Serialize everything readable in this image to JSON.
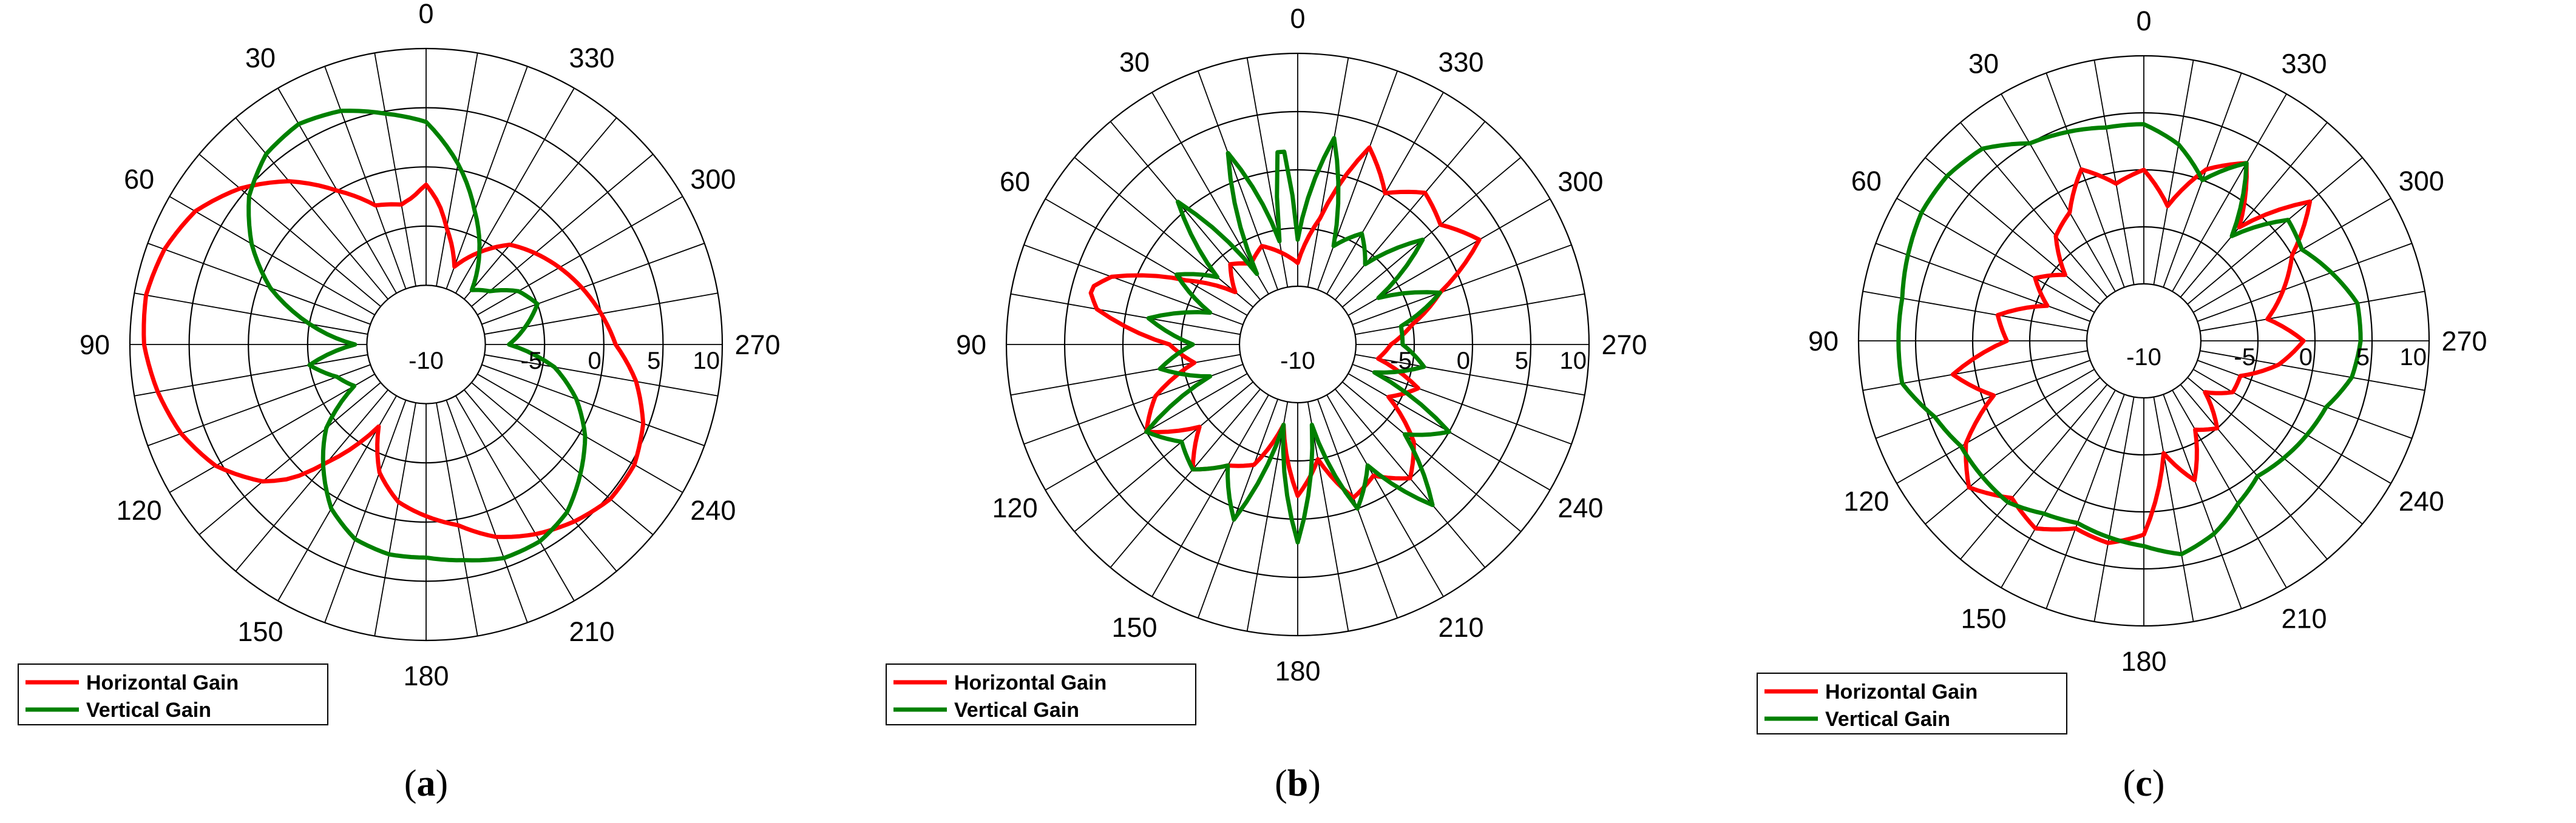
{
  "chart_data": [
    {
      "type": "polar",
      "caption_letter": "a",
      "angular_ticks": [
        "0",
        "30",
        "60",
        "90",
        "120",
        "150",
        "180",
        "210",
        "240",
        "270",
        "300",
        "330"
      ],
      "radial_ticks": [
        "-10",
        "-5",
        "0",
        "5",
        "10"
      ],
      "rlim": [
        -10,
        10
      ],
      "angle_step_deg": 10,
      "angle_direction": "counterclockwise, 0 at top",
      "legend": {
        "placement": "bottom-left"
      },
      "series": [
        {
          "name": "Horizontal Gain",
          "color": "#ff0000",
          "points": [
            [
              0,
              -1.5
            ],
            [
              5,
              -2.5
            ],
            [
              10,
              -3
            ],
            [
              20,
              -2.5
            ],
            [
              30,
              0
            ],
            [
              40,
              3
            ],
            [
              50,
              5.5
            ],
            [
              60,
              7.5
            ],
            [
              70,
              8.5
            ],
            [
              80,
              9
            ],
            [
              90,
              8.8
            ],
            [
              100,
              8
            ],
            [
              110,
              7
            ],
            [
              120,
              5.5
            ],
            [
              130,
              3
            ],
            [
              135,
              1
            ],
            [
              140,
              -2
            ],
            [
              150,
              -7
            ],
            [
              160,
              -3.5
            ],
            [
              170,
              -1.5
            ],
            [
              180,
              -0.5
            ],
            [
              190,
              0.5
            ],
            [
              200,
              2.3
            ],
            [
              210,
              3.5
            ],
            [
              220,
              4.5
            ],
            [
              230,
              5.3
            ],
            [
              240,
              5.3
            ],
            [
              250,
              4.5
            ],
            [
              260,
              3
            ],
            [
              270,
              1
            ],
            [
              280,
              0
            ],
            [
              290,
              -1
            ],
            [
              300,
              -2
            ],
            [
              310,
              -3
            ],
            [
              320,
              -4
            ],
            [
              330,
              -6
            ],
            [
              340,
              -8
            ],
            [
              350,
              -5
            ],
            [
              355,
              -3
            ]
          ]
        },
        {
          "name": "Vertical Gain",
          "color": "#008000",
          "points": [
            [
              0,
              3.8
            ],
            [
              10,
              4.8
            ],
            [
              20,
              6
            ],
            [
              30,
              6.5
            ],
            [
              40,
              6
            ],
            [
              50,
              4.5
            ],
            [
              60,
              2
            ],
            [
              70,
              -1
            ],
            [
              80,
              -5
            ],
            [
              90,
              -9
            ],
            [
              100,
              -5
            ],
            [
              110,
              -7
            ],
            [
              120,
              -8
            ],
            [
              130,
              -4
            ],
            [
              140,
              -1.5
            ],
            [
              150,
              1
            ],
            [
              160,
              2.5
            ],
            [
              170,
              3
            ],
            [
              180,
              3
            ],
            [
              190,
              3.5
            ],
            [
              200,
              4.2
            ],
            [
              210,
              4.2
            ],
            [
              220,
              3.5
            ],
            [
              230,
              2
            ],
            [
              240,
              0.5
            ],
            [
              250,
              -1.5
            ],
            [
              260,
              -4
            ],
            [
              270,
              -8
            ],
            [
              280,
              -6.5
            ],
            [
              290,
              -5
            ],
            [
              300,
              -6
            ],
            [
              310,
              -8
            ],
            [
              320,
              -9
            ],
            [
              330,
              -6
            ],
            [
              340,
              -3
            ],
            [
              350,
              0.5
            ]
          ]
        }
      ]
    },
    {
      "type": "polar",
      "caption_letter": "b",
      "angular_ticks": [
        "0",
        "30",
        "60",
        "90",
        "120",
        "150",
        "180",
        "210",
        "240",
        "270",
        "300",
        "330"
      ],
      "radial_ticks": [
        "-10",
        "-5",
        "0",
        "5",
        "10"
      ],
      "rlim": [
        -10,
        10
      ],
      "angle_step_deg": 10,
      "angle_direction": "counterclockwise, 0 at top",
      "legend": {
        "placement": "bottom-left"
      },
      "series": [
        {
          "name": "Horizontal Gain",
          "color": "#ff0000",
          "points": [
            [
              0,
              -8
            ],
            [
              10,
              -7
            ],
            [
              20,
              -6
            ],
            [
              30,
              -7
            ],
            [
              40,
              -6
            ],
            [
              50,
              -8
            ],
            [
              60,
              -4
            ],
            [
              70,
              2
            ],
            [
              75,
              3.5
            ],
            [
              80,
              2.5
            ],
            [
              90,
              -4
            ],
            [
              100,
              -6
            ],
            [
              110,
              -2
            ],
            [
              120,
              0
            ],
            [
              130,
              -4
            ],
            [
              140,
              -1
            ],
            [
              150,
              -3
            ],
            [
              160,
              -4
            ],
            [
              170,
              -8
            ],
            [
              180,
              -2
            ],
            [
              190,
              -5
            ],
            [
              200,
              -1
            ],
            [
              210,
              -2
            ],
            [
              220,
              0
            ],
            [
              230,
              -2
            ],
            [
              240,
              -6
            ],
            [
              250,
              -4
            ],
            [
              260,
              -8
            ],
            [
              270,
              -7
            ],
            [
              280,
              -5
            ],
            [
              290,
              -2
            ],
            [
              300,
              3
            ],
            [
              310,
              1
            ],
            [
              320,
              2
            ],
            [
              330,
              0
            ],
            [
              340,
              3
            ],
            [
              350,
              -4
            ]
          ]
        },
        {
          "name": "Vertical Gain",
          "color": "#008000",
          "points": [
            [
              0,
              -6
            ],
            [
              5,
              3.5
            ],
            [
              10,
              -6
            ],
            [
              20,
              2.5
            ],
            [
              30,
              -8
            ],
            [
              40,
              1
            ],
            [
              50,
              -6
            ],
            [
              60,
              -3
            ],
            [
              70,
              -7
            ],
            [
              80,
              -2
            ],
            [
              90,
              -6
            ],
            [
              100,
              -3
            ],
            [
              110,
              -7
            ],
            [
              120,
              0
            ],
            [
              130,
              -2
            ],
            [
              140,
              -1
            ],
            [
              150,
              -3
            ],
            [
              160,
              1
            ],
            [
              170,
              -8
            ],
            [
              180,
              2
            ],
            [
              190,
              -8
            ],
            [
              200,
              0
            ],
            [
              210,
              -3
            ],
            [
              220,
              3
            ],
            [
              230,
              -3
            ],
            [
              240,
              0
            ],
            [
              250,
              -8
            ],
            [
              260,
              -4
            ],
            [
              270,
              -6
            ],
            [
              280,
              -6
            ],
            [
              290,
              -2
            ],
            [
              300,
              -7
            ],
            [
              310,
              -1
            ],
            [
              320,
              -6
            ],
            [
              330,
              -4
            ],
            [
              340,
              -6
            ],
            [
              350,
              3
            ]
          ]
        }
      ]
    },
    {
      "type": "polar",
      "caption_letter": "c",
      "angular_ticks": [
        "0",
        "30",
        "60",
        "90",
        "120",
        "150",
        "180",
        "210",
        "240",
        "270",
        "300",
        "330"
      ],
      "radial_ticks": [
        "-10",
        "-5",
        "0",
        "5",
        "10"
      ],
      "rlim": [
        -10,
        10
      ],
      "angle_step_deg": 10,
      "angle_direction": "counterclockwise, 0 at top",
      "legend": {
        "placement": "bottom-left"
      },
      "series": [
        {
          "name": "Horizontal Gain",
          "color": "#ff0000",
          "points": [
            [
              0,
              0
            ],
            [
              10,
              -1
            ],
            [
              20,
              1
            ],
            [
              30,
              -2
            ],
            [
              40,
              -3
            ],
            [
              50,
              -6
            ],
            [
              60,
              -4
            ],
            [
              70,
              -6
            ],
            [
              80,
              -2
            ],
            [
              90,
              -3
            ],
            [
              100,
              2
            ],
            [
              110,
              -1
            ],
            [
              120,
              3
            ],
            [
              130,
              5
            ],
            [
              140,
              3
            ],
            [
              150,
              4
            ],
            [
              160,
              2.5
            ],
            [
              170,
              3
            ],
            [
              180,
              2
            ],
            [
              190,
              -5
            ],
            [
              200,
              -2
            ],
            [
              210,
              -6
            ],
            [
              220,
              -5
            ],
            [
              230,
              -8
            ],
            [
              240,
              -6
            ],
            [
              250,
              -6
            ],
            [
              260,
              -3
            ],
            [
              270,
              -1
            ],
            [
              280,
              -4
            ],
            [
              290,
              -2
            ],
            [
              300,
              0
            ],
            [
              310,
              4
            ],
            [
              320,
              -2
            ],
            [
              330,
              3
            ],
            [
              340,
              1
            ],
            [
              350,
              -3
            ]
          ]
        },
        {
          "name": "Vertical Gain",
          "color": "#008000",
          "points": [
            [
              0,
              4
            ],
            [
              10,
              4
            ],
            [
              20,
              4.5
            ],
            [
              30,
              5
            ],
            [
              40,
              7
            ],
            [
              50,
              7.5
            ],
            [
              60,
              7.5
            ],
            [
              70,
              7
            ],
            [
              80,
              6.5
            ],
            [
              90,
              6.5
            ],
            [
              100,
              6.5
            ],
            [
              110,
              4.5
            ],
            [
              120,
              3.5
            ],
            [
              130,
              3.5
            ],
            [
              140,
              3.5
            ],
            [
              150,
              2.5
            ],
            [
              160,
              2
            ],
            [
              170,
              2.5
            ],
            [
              180,
              3
            ],
            [
              190,
              4
            ],
            [
              200,
              3
            ],
            [
              210,
              1.5
            ],
            [
              220,
              0.5
            ],
            [
              230,
              1
            ],
            [
              240,
              1.5
            ],
            [
              250,
              2
            ],
            [
              260,
              3.5
            ],
            [
              270,
              4
            ],
            [
              280,
              4
            ],
            [
              290,
              2.5
            ],
            [
              300,
              1
            ],
            [
              310,
              1.5
            ],
            [
              320,
              -3
            ],
            [
              330,
              3
            ],
            [
              340,
              0
            ],
            [
              350,
              2.5
            ]
          ]
        }
      ]
    }
  ]
}
